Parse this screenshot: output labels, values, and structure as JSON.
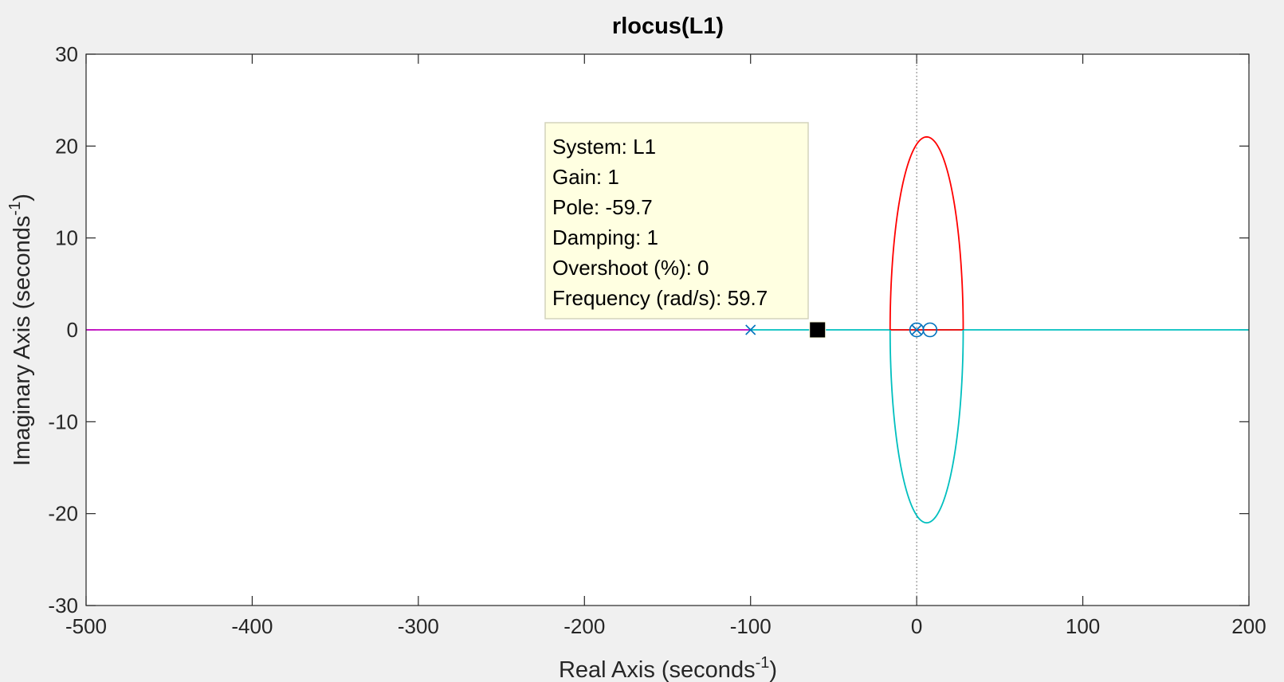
{
  "chart_data": {
    "type": "root-locus",
    "title": "rlocus(L1)",
    "xlabel": "Real Axis (seconds",
    "xlabel_sup": "-1",
    "xlabel_end": ")",
    "ylabel": "Imaginary Axis (seconds",
    "ylabel_sup": "-1",
    "ylabel_end": ")",
    "xlim": [
      -500,
      200
    ],
    "ylim": [
      -30,
      30
    ],
    "xticks": [
      -500,
      -400,
      -300,
      -200,
      -100,
      0,
      100,
      200
    ],
    "yticks": [
      -30,
      -20,
      -10,
      0,
      10,
      20,
      30
    ],
    "grid": false,
    "poles": [
      [
        -100,
        0
      ],
      [
        0,
        0
      ]
    ],
    "zeros": [
      [
        0,
        0
      ],
      [
        8,
        0
      ]
    ],
    "selected_point": [
      -59.7,
      0
    ],
    "branches": [
      {
        "color": "#bf00bf",
        "kind": "segment",
        "from": [
          -500,
          0
        ],
        "to": [
          -100,
          0
        ]
      },
      {
        "color": "#00bfbf",
        "kind": "segment",
        "from": [
          -100,
          0
        ],
        "to": [
          200,
          0
        ]
      },
      {
        "color": "#ff0000",
        "kind": "segment",
        "from": [
          -16,
          0
        ],
        "to": [
          28,
          0
        ]
      },
      {
        "color": "#ff0000",
        "kind": "ellipse-arc",
        "center": [
          6,
          0
        ],
        "rx": 22,
        "ry": 21,
        "half": "upper"
      },
      {
        "color": "#00bfbf",
        "kind": "ellipse-arc",
        "center": [
          6,
          0
        ],
        "rx": 22,
        "ry": 21,
        "half": "lower"
      }
    ],
    "colors": {
      "pole_zero": "#0072bd",
      "datatip_bg": "#ffffe1",
      "datatip_border": "#d4d4bc"
    }
  },
  "datatip": {
    "lines": [
      "System: L1",
      "Gain: 1",
      "Pole: -59.7",
      "Damping: 1",
      "Overshoot (%): 0",
      "Frequency (rad/s): 59.7"
    ]
  }
}
